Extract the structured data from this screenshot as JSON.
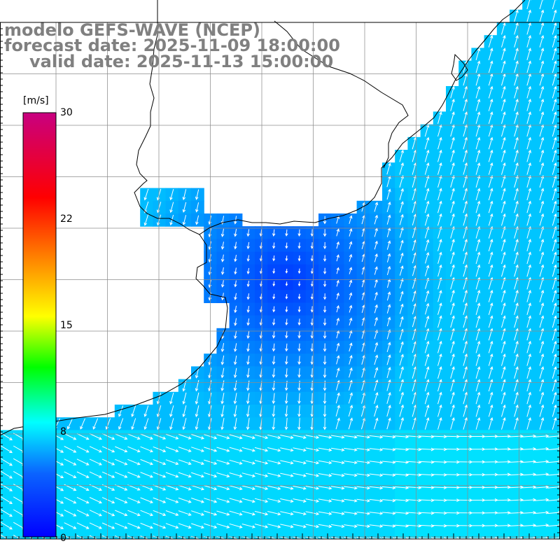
{
  "title": {
    "line1": "modelo GEFS-WAVE (NCEP)",
    "line2": "forecast date: 2025-11-09 18:00:00",
    "line3": "valid date: 2025-11-13 15:00:00"
  },
  "colorbar": {
    "unit": "[m/s]",
    "ticks": [
      "30",
      "22",
      "15",
      "8",
      "0"
    ],
    "min": 0,
    "max": 30
  },
  "field": {
    "variable": "wind speed and direction",
    "grid_lines": true,
    "land_color": "#ffffff",
    "coastline_color": "#000000",
    "arrow_color": "#ffffff"
  }
}
